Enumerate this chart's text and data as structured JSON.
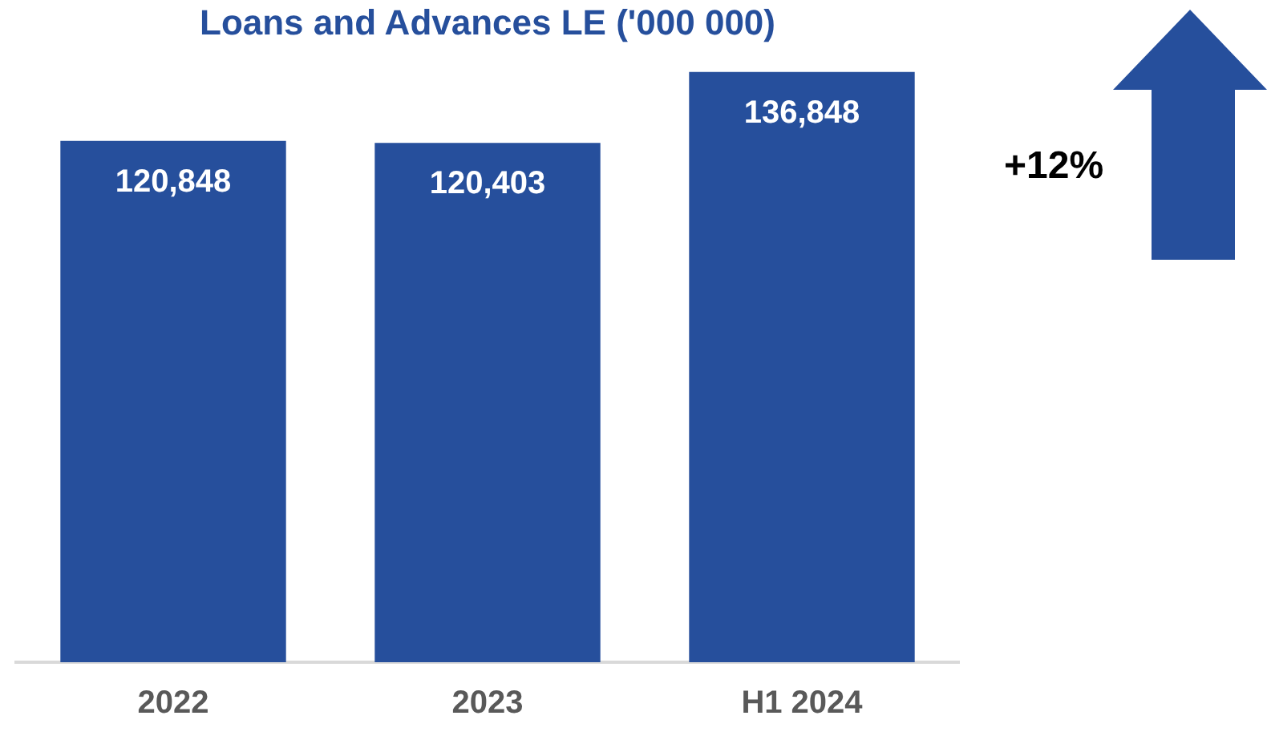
{
  "chart_data": {
    "type": "bar",
    "title": "Loans and Advances LE ('000 000)",
    "categories": [
      "2022",
      "2023",
      "H1 2024"
    ],
    "values": [
      120848,
      120403,
      136848
    ],
    "color": "#264f9c",
    "value_labels": [
      "120,848",
      "120,403",
      "136,848"
    ],
    "tick_labels": "x",
    "grid": false,
    "legend": false,
    "annotations": [
      "+12%"
    ]
  }
}
